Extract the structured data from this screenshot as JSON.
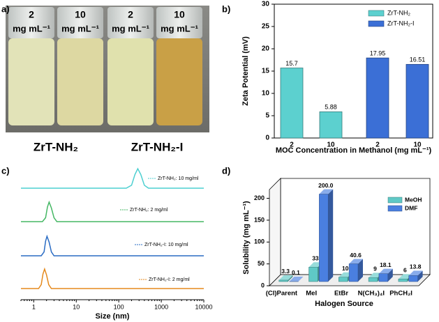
{
  "panel_labels": [
    "a)",
    "b)",
    "c)",
    "d)"
  ],
  "photo": {
    "vial_labels": [
      {
        "number": "2",
        "unit": "mg mL⁻¹"
      },
      {
        "number": "10",
        "unit": "mg mL⁻¹"
      },
      {
        "number": "2",
        "unit": "mg mL⁻¹"
      },
      {
        "number": "10",
        "unit": "mg mL⁻¹"
      }
    ],
    "group_labels": [
      "ZrT-NH₂",
      "ZrT-NH₂-I"
    ]
  },
  "chart_data": [
    {
      "type": "bar",
      "ylabel": "Zeta Potential (mV)",
      "xlabel": "MOC Concentration in Methanol (mg mL⁻¹)",
      "categories": [
        "2",
        "10",
        "2",
        "10"
      ],
      "series": [
        {
          "name": "ZrT-NH₂",
          "color": "#5cd0cf",
          "values": [
            15.7,
            5.88,
            null,
            null
          ]
        },
        {
          "name": "ZrT-NH₂-I",
          "color": "#3b6fd6",
          "values": [
            null,
            null,
            17.95,
            16.51
          ]
        }
      ],
      "ylim": [
        0,
        30
      ],
      "yticks": [
        0,
        5,
        10,
        15,
        20,
        25,
        30
      ],
      "legend": "top-right"
    },
    {
      "type": "line",
      "xlabel": "Size (nm)",
      "xscale": "log",
      "xlim": [
        0.5,
        10000
      ],
      "xticks": [
        1,
        10,
        100,
        1000,
        10000
      ],
      "series": [
        {
          "name": "ZrT-NH₂: 10 mg/ml",
          "color": "#4ccfd0",
          "x": [
            0.5,
            150,
            200,
            240,
            280,
            330,
            400,
            500,
            10000
          ],
          "values": [
            0,
            0,
            15,
            70,
            100,
            70,
            15,
            0,
            0
          ]
        },
        {
          "name": "ZrT-NH₂: 2 mg/ml",
          "color": "#45b764",
          "x": [
            0.5,
            1.6,
            1.9,
            2.1,
            2.3,
            2.6,
            3.0,
            3.5,
            10000
          ],
          "values": [
            0,
            0,
            20,
            75,
            100,
            70,
            20,
            0,
            0
          ]
        },
        {
          "name": "ZrT-NH₂-I: 10 mg/ml",
          "color": "#2a6cc4",
          "x": [
            0.5,
            1.5,
            1.75,
            1.9,
            2.05,
            2.3,
            2.6,
            3.0,
            10000
          ],
          "values": [
            0,
            0,
            20,
            75,
            100,
            70,
            20,
            0,
            0
          ]
        },
        {
          "name": "ZrT-NH₂-I: 2 mg/ml",
          "color": "#e5891c",
          "x": [
            0.5,
            1.3,
            1.5,
            1.65,
            1.8,
            2.0,
            2.25,
            2.6,
            10000
          ],
          "values": [
            0,
            0,
            20,
            75,
            100,
            70,
            20,
            0,
            0
          ]
        }
      ]
    },
    {
      "type": "bar3d",
      "ylabel": "Solubility (mg mL⁻¹)",
      "xlabel": "Halogen Source",
      "categories": [
        "(Cl)Parent",
        "MeI",
        "EtBr",
        "N(CH₃)₄I",
        "PhCH₂I"
      ],
      "series": [
        {
          "name": "MeOH",
          "color": "#5fc9c6",
          "values": [
            3.3,
            33,
            10,
            9,
            6
          ]
        },
        {
          "name": "DMF",
          "color": "#4a7fe0",
          "values": [
            0.1,
            200.0,
            40.6,
            18.1,
            13.8
          ],
          "value_labels": [
            "0.1",
            "200.0",
            "40.6",
            "18.1",
            "13.8"
          ]
        }
      ],
      "ylim": [
        0,
        220
      ],
      "yticks": [
        0,
        50,
        100,
        150,
        200
      ],
      "legend": "top-right"
    }
  ]
}
